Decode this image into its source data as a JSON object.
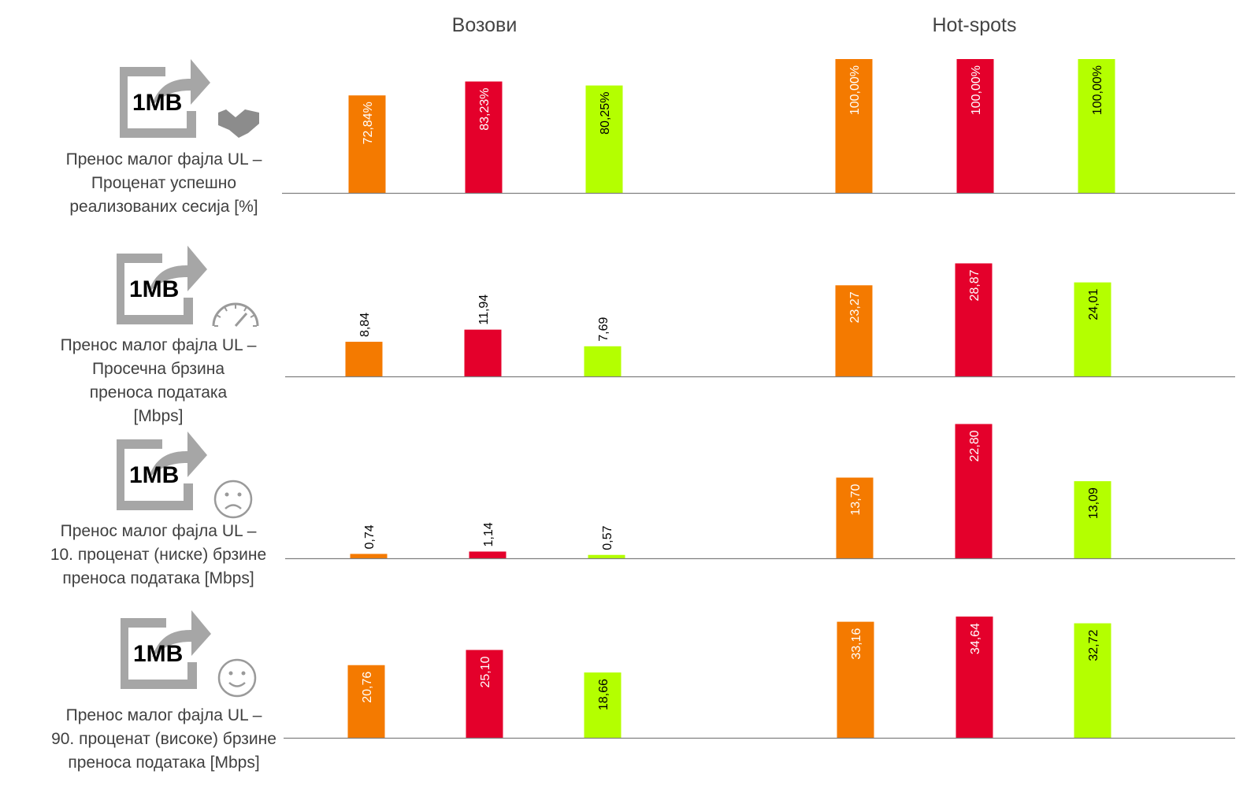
{
  "groups": [
    "Возови",
    "Hot-spots"
  ],
  "icon_text": "1MB",
  "colors": {
    "series1": "#F47A00",
    "series2": "#E4002B",
    "series3": "#B4FF00",
    "axis": "#7f7f7f"
  },
  "chart_data": [
    {
      "type": "bar",
      "title": "Пренос малог фајла UL – Проценат успешно реализованих сесија [%]",
      "title_lines": [
        "Пренос малог фајла UL –",
        "Проценат успешно",
        "реализованих сесија [%]"
      ],
      "icon": "handshake-icon",
      "categories": [
        "Возови",
        "Hot-spots"
      ],
      "ylim": [
        0,
        100
      ],
      "series": [
        {
          "name": "series-1",
          "color": "#F47A00",
          "values": [
            72.84,
            100.0
          ],
          "labels": [
            "72,84%",
            "100,00%"
          ]
        },
        {
          "name": "series-2",
          "color": "#E4002B",
          "values": [
            83.23,
            100.0
          ],
          "labels": [
            "83,23%",
            "100,00%"
          ]
        },
        {
          "name": "series-3",
          "color": "#B4FF00",
          "values": [
            80.25,
            100.0
          ],
          "labels": [
            "80,25%",
            "100,00%"
          ]
        }
      ]
    },
    {
      "type": "bar",
      "title": "Пренос малог фајла UL – Просечна брзина преноса података [Mbps]",
      "title_lines": [
        "Пренос малог фајла UL –",
        "Просечна брзина",
        "преноса података",
        "[Mbps]"
      ],
      "icon": "speedometer-icon",
      "categories": [
        "Возови",
        "Hot-spots"
      ],
      "ylim": [
        0,
        35
      ],
      "series": [
        {
          "name": "series-1",
          "color": "#F47A00",
          "values": [
            8.84,
            23.27
          ],
          "labels": [
            "8,84",
            "23,27"
          ]
        },
        {
          "name": "series-2",
          "color": "#E4002B",
          "values": [
            11.94,
            28.87
          ],
          "labels": [
            "11,94",
            "28,87"
          ]
        },
        {
          "name": "series-3",
          "color": "#B4FF00",
          "values": [
            7.69,
            24.01
          ],
          "labels": [
            "7,69",
            "24,01"
          ]
        }
      ]
    },
    {
      "type": "bar",
      "title": "Пренос малог фајла UL – 10. проценат (ниске) брзине преноса података [Mbps]",
      "title_lines": [
        "Пренос малог фајла UL –",
        "10. проценат (ниске) брзине",
        "преноса података [Mbps]"
      ],
      "icon": "sad-face-icon",
      "categories": [
        "Возови",
        "Hot-spots"
      ],
      "ylim": [
        0,
        23
      ],
      "series": [
        {
          "name": "series-1",
          "color": "#F47A00",
          "values": [
            0.74,
            13.7
          ],
          "labels": [
            "0,74",
            "13,70"
          ]
        },
        {
          "name": "series-2",
          "color": "#E4002B",
          "values": [
            1.14,
            22.8
          ],
          "labels": [
            "1,14",
            "22,80"
          ]
        },
        {
          "name": "series-3",
          "color": "#B4FF00",
          "values": [
            0.57,
            13.09
          ],
          "labels": [
            "0,57",
            "13,09"
          ]
        }
      ]
    },
    {
      "type": "bar",
      "title": "Пренос малог фајла UL – 90. проценат (високе) брзине преноса података [Mbps]",
      "title_lines": [
        "Пренос малог фајла UL –",
        "90. проценат (високе) брзине",
        "преноса података [Mbps]"
      ],
      "icon": "smiley-face-icon",
      "categories": [
        "Возови",
        "Hot-spots"
      ],
      "ylim": [
        0,
        36
      ],
      "series": [
        {
          "name": "series-1",
          "color": "#F47A00",
          "values": [
            20.76,
            33.16
          ],
          "labels": [
            "20,76",
            "33,16"
          ]
        },
        {
          "name": "series-2",
          "color": "#E4002B",
          "values": [
            25.1,
            34.64
          ],
          "labels": [
            "25,10",
            "34,64"
          ]
        },
        {
          "name": "series-3",
          "color": "#B4FF00",
          "values": [
            18.66,
            32.72
          ],
          "labels": [
            "18,66",
            "32,72"
          ]
        }
      ]
    }
  ]
}
